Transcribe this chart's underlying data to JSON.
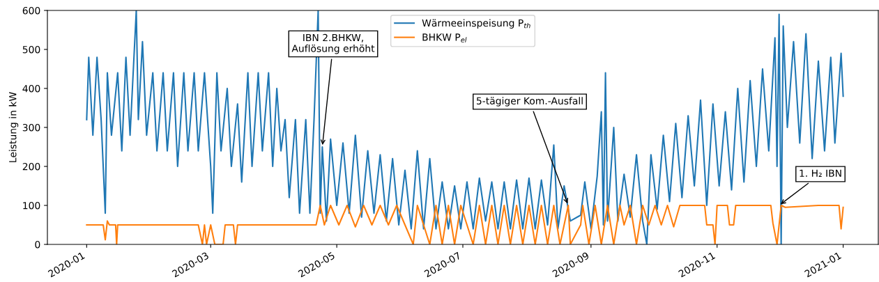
{
  "chart_data": {
    "type": "line",
    "ylabel": "Leistung in kW",
    "xlim": [
      "2019-12-13",
      "2021-01-18"
    ],
    "xticks": [
      "2020-01",
      "2020-03",
      "2020-05",
      "2020-07",
      "2020-09",
      "2020-11",
      "2021-01"
    ],
    "ylim": [
      0,
      600
    ],
    "yticks": [
      0,
      100,
      200,
      300,
      400,
      500,
      600
    ],
    "grid": false,
    "legend": "top center",
    "line_style": "solid",
    "marker": "none",
    "series": [
      {
        "name": "Wärmeeinspeisung P$_{th}$",
        "color": "#1f77b4",
        "x": [
          "2020-01-01",
          "2020-01-02",
          "2020-01-04",
          "2020-01-06",
          "2020-01-08",
          "2020-01-10",
          "2020-01-11",
          "2020-01-13",
          "2020-01-16",
          "2020-01-18",
          "2020-01-20",
          "2020-01-22",
          "2020-01-25",
          "2020-01-26",
          "2020-01-28",
          "2020-01-30",
          "2020-02-02",
          "2020-02-04",
          "2020-02-07",
          "2020-02-09",
          "2020-02-12",
          "2020-02-14",
          "2020-02-17",
          "2020-02-19",
          "2020-02-22",
          "2020-02-24",
          "2020-02-27",
          "2020-03-01",
          "2020-03-02",
          "2020-03-04",
          "2020-03-06",
          "2020-03-09",
          "2020-03-11",
          "2020-03-14",
          "2020-03-16",
          "2020-03-19",
          "2020-03-21",
          "2020-03-24",
          "2020-03-26",
          "2020-03-29",
          "2020-03-31",
          "2020-04-02",
          "2020-04-04",
          "2020-04-06",
          "2020-04-08",
          "2020-04-11",
          "2020-04-13",
          "2020-04-16",
          "2020-04-18",
          "2020-04-20",
          "2020-04-22",
          "2020-04-23",
          "2020-04-24",
          "2020-04-26",
          "2020-04-28",
          "2020-05-01",
          "2020-05-04",
          "2020-05-07",
          "2020-05-10",
          "2020-05-13",
          "2020-05-16",
          "2020-05-19",
          "2020-05-22",
          "2020-05-25",
          "2020-05-28",
          "2020-05-31",
          "2020-06-03",
          "2020-06-06",
          "2020-06-09",
          "2020-06-12",
          "2020-06-15",
          "2020-06-18",
          "2020-06-21",
          "2020-06-24",
          "2020-06-27",
          "2020-06-30",
          "2020-07-03",
          "2020-07-06",
          "2020-07-09",
          "2020-07-12",
          "2020-07-15",
          "2020-07-18",
          "2020-07-21",
          "2020-07-24",
          "2020-07-27",
          "2020-07-30",
          "2020-08-02",
          "2020-08-05",
          "2020-08-08",
          "2020-08-11",
          "2020-08-14",
          "2020-08-16",
          "2020-08-19",
          "2020-08-22",
          "2020-08-27",
          "2020-08-29",
          "2020-09-01",
          "2020-09-04",
          "2020-09-06",
          "2020-09-07",
          "2020-09-08",
          "2020-09-09",
          "2020-09-12",
          "2020-09-14",
          "2020-09-17",
          "2020-09-20",
          "2020-09-23",
          "2020-09-26",
          "2020-09-28",
          "2020-09-30",
          "2020-10-03",
          "2020-10-06",
          "2020-10-09",
          "2020-10-12",
          "2020-10-15",
          "2020-10-18",
          "2020-10-21",
          "2020-10-24",
          "2020-10-27",
          "2020-10-30",
          "2020-11-02",
          "2020-11-05",
          "2020-11-08",
          "2020-11-11",
          "2020-11-14",
          "2020-11-17",
          "2020-11-20",
          "2020-11-23",
          "2020-11-26",
          "2020-11-29",
          "2020-11-30",
          "2020-12-01",
          "2020-12-02",
          "2020-12-03",
          "2020-12-05",
          "2020-12-08",
          "2020-12-11",
          "2020-12-14",
          "2020-12-17",
          "2020-12-20",
          "2020-12-23",
          "2020-12-26",
          "2020-12-28",
          "2020-12-31",
          "2021-01-01"
        ],
        "values": [
          320,
          480,
          280,
          480,
          320,
          80,
          440,
          280,
          440,
          240,
          480,
          280,
          600,
          320,
          520,
          280,
          440,
          240,
          440,
          240,
          440,
          200,
          440,
          240,
          440,
          240,
          440,
          200,
          80,
          440,
          240,
          400,
          200,
          360,
          160,
          440,
          200,
          440,
          240,
          440,
          200,
          400,
          240,
          320,
          120,
          320,
          80,
          320,
          80,
          320,
          600,
          80,
          250,
          60,
          270,
          100,
          260,
          80,
          280,
          70,
          240,
          80,
          230,
          60,
          220,
          50,
          190,
          40,
          240,
          40,
          220,
          40,
          160,
          40,
          150,
          40,
          160,
          40,
          170,
          60,
          160,
          40,
          160,
          40,
          165,
          40,
          170,
          40,
          165,
          50,
          255,
          40,
          150,
          60,
          75,
          160,
          40,
          175,
          340,
          50,
          440,
          60,
          300,
          60,
          180,
          70,
          230,
          60,
          0,
          230,
          90,
          280,
          110,
          310,
          120,
          330,
          150,
          370,
          100,
          360,
          150,
          340,
          140,
          400,
          160,
          420,
          200,
          450,
          240,
          530,
          200,
          590,
          0,
          560,
          300,
          520,
          260,
          540,
          220,
          470,
          240,
          480,
          260,
          490,
          380
        ]
      },
      {
        "name": "BHKW P$_{el}$",
        "color": "#ff7f0e",
        "x": [
          "2020-01-01",
          "2020-01-09",
          "2020-01-10",
          "2020-01-11",
          "2020-01-12",
          "2020-01-15",
          "2020-01-15T12:00",
          "2020-01-16",
          "2020-02-24",
          "2020-02-26",
          "2020-02-27",
          "2020-02-28",
          "2020-03-01",
          "2020-03-03",
          "2020-03-07",
          "2020-03-08",
          "2020-03-12",
          "2020-03-13",
          "2020-03-14",
          "2020-04-21",
          "2020-04-23",
          "2020-04-25",
          "2020-04-28",
          "2020-05-02",
          "2020-05-06",
          "2020-05-10",
          "2020-05-14",
          "2020-05-18",
          "2020-05-22",
          "2020-05-26",
          "2020-05-30",
          "2020-06-03",
          "2020-06-07",
          "2020-06-09",
          "2020-06-12",
          "2020-06-15",
          "2020-06-18",
          "2020-06-21",
          "2020-06-24",
          "2020-06-27",
          "2020-06-30",
          "2020-07-03",
          "2020-07-06",
          "2020-07-09",
          "2020-07-12",
          "2020-07-15",
          "2020-07-18",
          "2020-07-21",
          "2020-07-24",
          "2020-07-27",
          "2020-07-30",
          "2020-08-02",
          "2020-08-05",
          "2020-08-08",
          "2020-08-11",
          "2020-08-14",
          "2020-08-17",
          "2020-08-21",
          "2020-08-22",
          "2020-08-27",
          "2020-08-28",
          "2020-08-31",
          "2020-09-03",
          "2020-09-06",
          "2020-09-09",
          "2020-09-12",
          "2020-09-15",
          "2020-09-17",
          "2020-09-20",
          "2020-09-23",
          "2020-09-26",
          "2020-09-29",
          "2020-10-02",
          "2020-10-05",
          "2020-10-08",
          "2020-10-11",
          "2020-10-14",
          "2020-10-26",
          "2020-10-27",
          "2020-10-30",
          "2020-10-31",
          "2020-11-01",
          "2020-11-06",
          "2020-11-07",
          "2020-11-09",
          "2020-11-10",
          "2020-11-27",
          "2020-11-28",
          "2020-11-30",
          "2020-12-02",
          "2020-12-04",
          "2020-12-20",
          "2020-12-30",
          "2020-12-31",
          "2021-01-01"
        ],
        "values": [
          50,
          50,
          12,
          60,
          50,
          50,
          0,
          50,
          50,
          0,
          50,
          0,
          50,
          0,
          0,
          50,
          50,
          0,
          50,
          50,
          100,
          50,
          100,
          50,
          100,
          45,
          100,
          50,
          100,
          50,
          100,
          50,
          0,
          100,
          50,
          0,
          100,
          0,
          100,
          0,
          100,
          50,
          0,
          100,
          0,
          100,
          0,
          100,
          0,
          100,
          0,
          100,
          0,
          100,
          0,
          100,
          0,
          100,
          0,
          50,
          100,
          0,
          100,
          0,
          100,
          0,
          100,
          50,
          100,
          0,
          100,
          50,
          100,
          50,
          100,
          45,
          100,
          100,
          50,
          50,
          0,
          100,
          100,
          50,
          50,
          100,
          100,
          55,
          0,
          100,
          95,
          100,
          100,
          40,
          95
        ]
      }
    ],
    "annotations": [
      {
        "text": "IBN 2.BHKW,\nAuflösung erhöht",
        "x": "2020-04-24",
        "y": 250
      },
      {
        "text": "5-tägiger Kom.-Ausfall",
        "x": "2020-08-21",
        "y": 100
      },
      {
        "text": "1. H₂ IBN",
        "x": "2020-12-01",
        "y": 100
      }
    ]
  }
}
